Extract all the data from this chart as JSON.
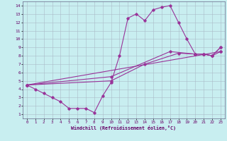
{
  "xlabel": "Windchill (Refroidissement éolien,°C)",
  "background_color": "#c8eef0",
  "grid_color": "#aabbc8",
  "line_color": "#993399",
  "xlim": [
    -0.5,
    23.5
  ],
  "ylim": [
    0.5,
    14.5
  ],
  "xticks": [
    0,
    1,
    2,
    3,
    4,
    5,
    6,
    7,
    8,
    9,
    10,
    11,
    12,
    13,
    14,
    15,
    16,
    17,
    18,
    19,
    20,
    21,
    22,
    23
  ],
  "yticks": [
    1,
    2,
    3,
    4,
    5,
    6,
    7,
    8,
    9,
    10,
    11,
    12,
    13,
    14
  ],
  "series1": [
    [
      0,
      4.5
    ],
    [
      1,
      4.0
    ],
    [
      2,
      3.5
    ],
    [
      3,
      3.0
    ],
    [
      4,
      2.5
    ],
    [
      5,
      1.7
    ],
    [
      6,
      1.7
    ],
    [
      7,
      1.7
    ],
    [
      8,
      1.2
    ],
    [
      9,
      3.2
    ],
    [
      10,
      4.8
    ],
    [
      11,
      8.0
    ],
    [
      12,
      12.5
    ],
    [
      13,
      13.0
    ],
    [
      14,
      12.2
    ],
    [
      15,
      13.5
    ],
    [
      16,
      13.8
    ],
    [
      17,
      14.0
    ],
    [
      18,
      12.0
    ],
    [
      19,
      10.0
    ],
    [
      20,
      8.2
    ],
    [
      21,
      8.2
    ],
    [
      22,
      8.0
    ],
    [
      23,
      9.0
    ]
  ],
  "series2": [
    [
      0,
      4.5
    ],
    [
      10,
      5.0
    ],
    [
      14,
      7.0
    ],
    [
      18,
      8.3
    ],
    [
      20,
      8.2
    ],
    [
      21,
      8.2
    ],
    [
      22,
      8.0
    ],
    [
      23,
      8.5
    ]
  ],
  "series3": [
    [
      0,
      4.5
    ],
    [
      10,
      5.5
    ],
    [
      17,
      8.5
    ],
    [
      20,
      8.2
    ],
    [
      21,
      8.2
    ],
    [
      22,
      8.0
    ],
    [
      23,
      9.0
    ]
  ],
  "series4": [
    [
      0,
      4.5
    ],
    [
      23,
      8.5
    ]
  ]
}
